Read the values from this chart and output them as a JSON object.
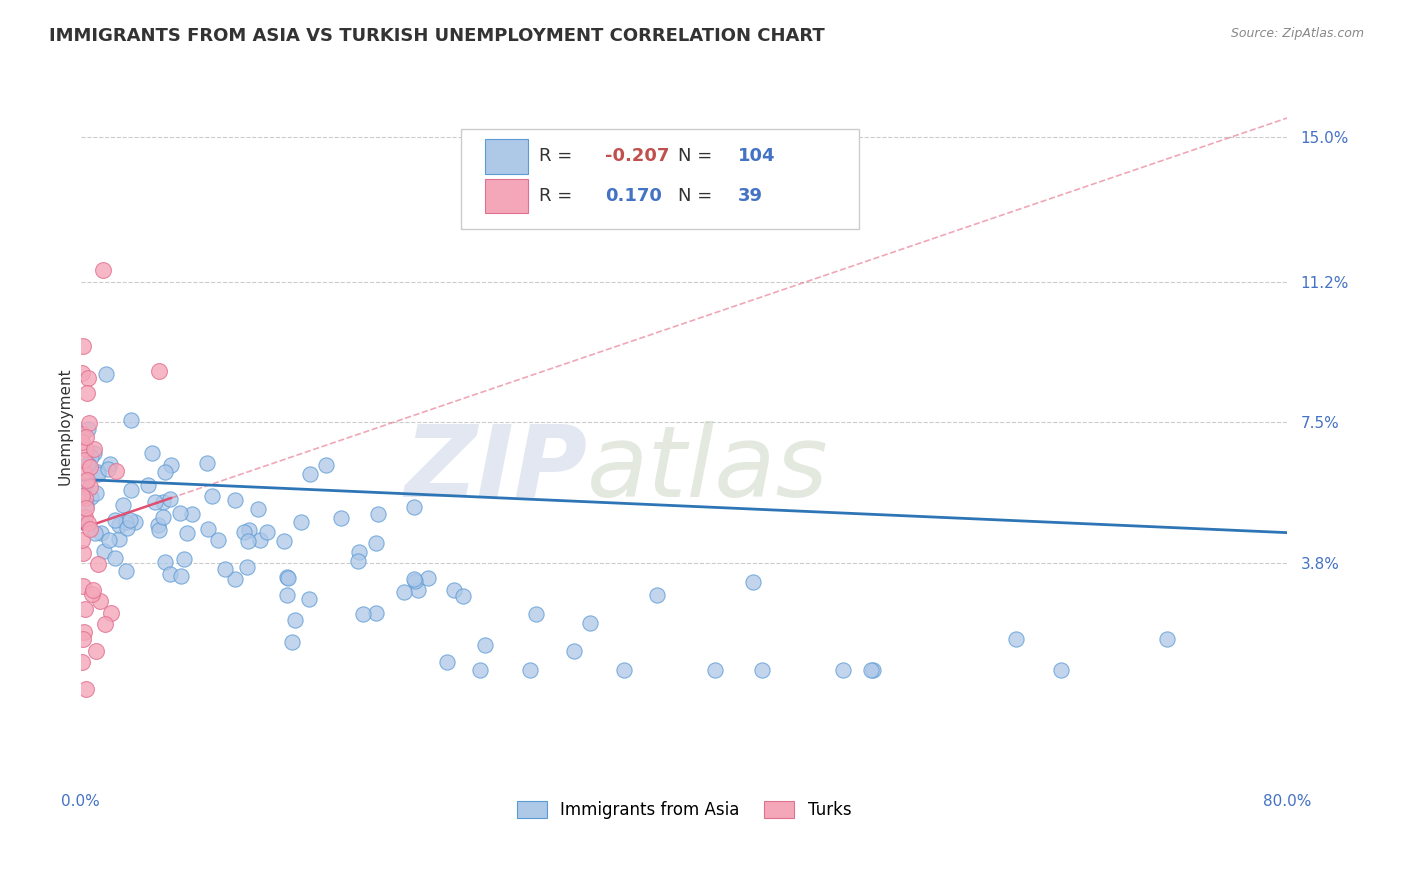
{
  "title": "IMMIGRANTS FROM ASIA VS TURKISH UNEMPLOYMENT CORRELATION CHART",
  "source_text": "Source: ZipAtlas.com",
  "ylabel": "Unemployment",
  "watermark_zip": "ZIP",
  "watermark_atlas": "atlas",
  "xlim": [
    0.0,
    0.8
  ],
  "ylim": [
    -0.02,
    0.168
  ],
  "xticks": [
    0.0,
    0.8
  ],
  "xtick_labels": [
    "0.0%",
    "80.0%"
  ],
  "yticks": [
    0.038,
    0.075,
    0.112,
    0.15
  ],
  "ytick_labels": [
    "3.8%",
    "7.5%",
    "11.2%",
    "15.0%"
  ],
  "grid_color": "#cccccc",
  "background_color": "#ffffff",
  "blue_dot_color": "#aec8e8",
  "blue_dot_edge": "#5b9bd5",
  "pink_dot_color": "#f4a7b9",
  "pink_dot_edge": "#e07090",
  "blue_trend_color": "#2e75b6",
  "pink_trend_color": "#e05070",
  "legend_r_blue": "-0.207",
  "legend_n_blue": "104",
  "legend_r_pink": "0.170",
  "legend_n_pink": "39",
  "label_blue": "Immigrants from Asia",
  "label_pink": "Turks",
  "title_fontsize": 13,
  "axis_label_fontsize": 11,
  "tick_fontsize": 11,
  "legend_fontsize": 13,
  "text_color_dark": "#333333",
  "text_color_blue": "#4472c4",
  "text_color_red": "#c0504d"
}
